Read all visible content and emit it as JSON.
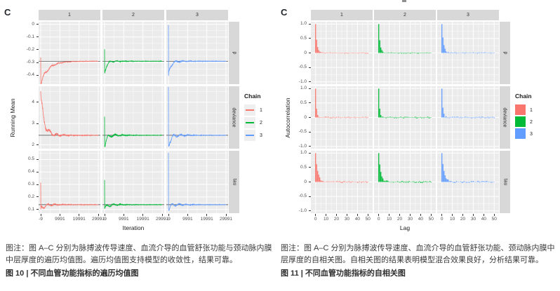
{
  "captions": {
    "left": {
      "note": "图注：图 A–C 分别为脉搏波传导速度、血流介导的血管舒张功能与颈动脉内膜中层厚度的遍历均值图。遍历均值图支持模型的收敛性，结果可靠。",
      "title": "图 10 | 不同血管功能指标的遍历均值图"
    },
    "right": {
      "note": "图注：图 A–C 分别为脉搏波传导速度、血流介导的血管舒张功能、颈动脉内膜中层厚度的自相关图。自相关图的结果表明模型混合效果良好，分析结果可靠。",
      "title": "图 11 | 不同血管功能指标的自相关图"
    }
  },
  "colors": {
    "chain1": "#F8766D",
    "chain2": "#00BA38",
    "chain3": "#619CFF",
    "panel_bg": "#EBEBEB",
    "strip_bg": "#D8D8D8",
    "grid": "#FFFFFF",
    "reference_line": "#404040"
  },
  "chart_data": [
    {
      "id": "running-mean",
      "type": "line",
      "figure_label": "C",
      "xlabel": "Iteration",
      "ylabel": "Running Mean",
      "x_ticks": [
        "-9",
        "9991",
        "19991",
        "29991"
      ],
      "x_tick_values": [
        -9,
        9991,
        19991,
        29991
      ],
      "x_range": [
        -9,
        29991
      ],
      "col_facets": [
        "1",
        "2",
        "3"
      ],
      "chain_colors": [
        "#F8766D",
        "#00BA38",
        "#619CFF"
      ],
      "legend": {
        "title": "Chain",
        "entries": [
          "1",
          "2",
          "3"
        ],
        "key_type": "line"
      },
      "rows": [
        {
          "facet": "p",
          "ylim": [
            -0.47,
            0.02
          ],
          "yticks": [
            0,
            -0.1,
            -0.2,
            -0.3,
            -0.4
          ],
          "ytick_labels": [
            "0",
            "-0.1",
            "-0.2",
            "-0.3",
            "-0.4"
          ],
          "reference": -0.29,
          "chains": [
            {
              "chain": "1",
              "v0": -0.26,
              "v1": -0.465,
              "T": 0.13,
              "wiggle": 0.016,
              "seed": 11
            },
            {
              "chain": "2",
              "v0": -0.195,
              "v1": -0.385,
              "T": 0.035,
              "wiggle": 0.012,
              "seed": 22
            },
            {
              "chain": "3",
              "v0": -0.005,
              "v1": -0.405,
              "T": 0.04,
              "wiggle": 0.014,
              "seed": 33
            }
          ]
        },
        {
          "facet": "deviance",
          "ylim": [
            1.82,
            4.75
          ],
          "yticks": [
            4,
            3,
            2
          ],
          "ytick_labels": [
            "4",
            "3",
            "2"
          ],
          "reference": 2.45,
          "chains": [
            {
              "chain": "1",
              "v0": 4.52,
              "v1": 4.3,
              "T": 0.06,
              "wiggle": 0.24,
              "seed": 44
            },
            {
              "chain": "2",
              "v0": 3.32,
              "v1": 1.93,
              "T": 0.035,
              "wiggle": 0.12,
              "seed": 55
            },
            {
              "chain": "3",
              "v0": 4.72,
              "v1": 1.95,
              "T": 0.04,
              "wiggle": 0.14,
              "seed": 66
            }
          ]
        },
        {
          "facet": "tau",
          "ylim": [
            0.07,
            0.57
          ],
          "yticks": [
            0.5,
            0.4,
            0.3,
            0.2,
            0.1
          ],
          "ytick_labels": [
            "0.5",
            "0.4",
            "0.3",
            "0.2",
            "0.1"
          ],
          "reference": 0.138,
          "chains": [
            {
              "chain": "1",
              "v0": 0.315,
              "v1": 0.1,
              "T": 0.05,
              "wiggle": 0.02,
              "seed": 77
            },
            {
              "chain": "2",
              "v0": 0.335,
              "v1": 0.105,
              "T": 0.045,
              "wiggle": 0.016,
              "seed": 88
            },
            {
              "chain": "3",
              "v0": 0.555,
              "v1": 0.105,
              "T": 0.04,
              "wiggle": 0.018,
              "seed": 99
            }
          ]
        }
      ]
    },
    {
      "id": "autocorrelation",
      "type": "bar",
      "figure_label": "C",
      "xlabel": "Lag",
      "ylabel": "Autocorrelation",
      "x_ticks": [
        "0",
        "10",
        "20",
        "30",
        "40",
        "50"
      ],
      "x_tick_values": [
        0,
        10,
        20,
        30,
        40,
        50
      ],
      "lags": 50,
      "ylim": [
        -1.08,
        1.08
      ],
      "yticks": [
        1.0,
        0.5,
        0,
        -0.5,
        -1.0
      ],
      "ytick_labels": [
        "1.0",
        "0.5",
        "0",
        "-0.5",
        "-1.0"
      ],
      "col_facets": [
        "1",
        "2",
        "3"
      ],
      "chain_colors": [
        "#F8766D",
        "#00BA38",
        "#619CFF"
      ],
      "legend": {
        "title": "Chain",
        "entries": [
          "1",
          "2",
          "3"
        ],
        "key_type": "fill"
      },
      "rows": [
        {
          "facet": "p",
          "decay": [
            1.25,
            1.2,
            1.55
          ],
          "noise": 0.025,
          "seeds": [
            41,
            42,
            43
          ]
        },
        {
          "facet": "deviance",
          "decay": [
            0.85,
            0.85,
            0.95
          ],
          "noise": 0.03,
          "seeds": [
            51,
            52,
            53
          ]
        },
        {
          "facet": "tau",
          "decay": [
            2.05,
            1.95,
            2.15
          ],
          "noise": 0.035,
          "seeds": [
            61,
            62,
            63
          ]
        }
      ]
    }
  ]
}
